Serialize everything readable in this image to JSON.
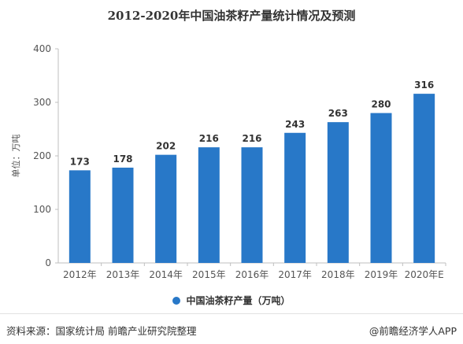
{
  "title": "2012-2020年中国油茶籽产量统计情况及预测",
  "chart_data": {
    "type": "bar",
    "categories": [
      "2012年",
      "2013年",
      "2014年",
      "2015年",
      "2016年",
      "2017年",
      "2018年",
      "2019年",
      "2020年E"
    ],
    "series": [
      {
        "name": "中国油茶籽产量（万吨）",
        "values": [
          173,
          178,
          202,
          216,
          216,
          243,
          263,
          280,
          316
        ]
      }
    ],
    "ylabel": "单位：万吨",
    "ylim": [
      0,
      400
    ],
    "yticks": [
      0,
      100,
      200,
      300,
      400
    ],
    "data_labels": true,
    "grid": false,
    "legend_position": "bottom",
    "bar_color": "#2878c8"
  },
  "footer": {
    "source": "资料来源：国家统计局 前瞻产业研究院整理",
    "brand": "@前瞻经济学人APP"
  }
}
